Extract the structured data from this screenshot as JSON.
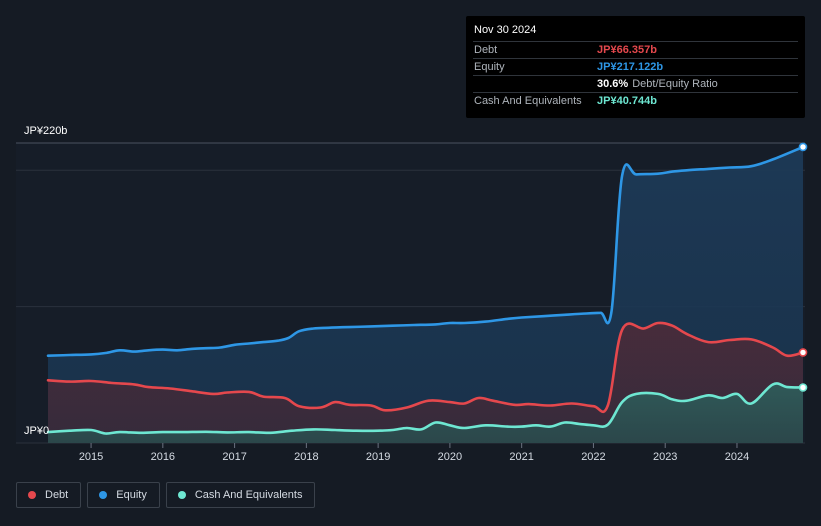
{
  "tooltip": {
    "date": "Nov 30 2024",
    "rows": [
      {
        "label": "Debt",
        "value": "JP¥66.357b",
        "color": "#e5484d"
      },
      {
        "label": "Equity",
        "value": "JP¥217.122b",
        "color": "#2e97e6"
      },
      {
        "label": "",
        "value": "30.6%",
        "extra": "Debt/Equity Ratio",
        "color": "#ffffff"
      },
      {
        "label": "Cash And Equivalents",
        "value": "JP¥40.744b",
        "color": "#6ee7d2"
      }
    ]
  },
  "legend": [
    {
      "label": "Debt",
      "color": "#e5484d"
    },
    {
      "label": "Equity",
      "color": "#2e97e6"
    },
    {
      "label": "Cash And Equivalents",
      "color": "#6ee7d2"
    }
  ],
  "chart_data": {
    "type": "area",
    "xlabel": "",
    "ylabel": "",
    "ylim": [
      0,
      220
    ],
    "xlim": [
      2014.4,
      2024.92
    ],
    "y_tick_labels": [
      {
        "value": 220,
        "label": "JP¥220b"
      },
      {
        "value": 0,
        "label": "JP¥0"
      }
    ],
    "x_ticks": [
      {
        "value": 2015,
        "label": "2015"
      },
      {
        "value": 2016,
        "label": "2016"
      },
      {
        "value": 2017,
        "label": "2017"
      },
      {
        "value": 2018,
        "label": "2018"
      },
      {
        "value": 2019,
        "label": "2019"
      },
      {
        "value": 2020,
        "label": "2020"
      },
      {
        "value": 2021,
        "label": "2021"
      },
      {
        "value": 2022,
        "label": "2022"
      },
      {
        "value": 2023,
        "label": "2023"
      },
      {
        "value": 2024,
        "label": "2024"
      }
    ],
    "series": [
      {
        "name": "Equity",
        "color": "#2e97e6",
        "points": [
          [
            2014.4,
            64
          ],
          [
            2014.7,
            64.5
          ],
          [
            2015.0,
            65
          ],
          [
            2015.2,
            66
          ],
          [
            2015.4,
            68
          ],
          [
            2015.6,
            67
          ],
          [
            2015.8,
            68
          ],
          [
            2016.0,
            68.5
          ],
          [
            2016.2,
            68
          ],
          [
            2016.4,
            69
          ],
          [
            2016.6,
            69.5
          ],
          [
            2016.8,
            70
          ],
          [
            2017.0,
            72
          ],
          [
            2017.2,
            73
          ],
          [
            2017.4,
            74
          ],
          [
            2017.6,
            75
          ],
          [
            2017.75,
            77
          ],
          [
            2017.9,
            82
          ],
          [
            2018.1,
            84
          ],
          [
            2018.3,
            84.5
          ],
          [
            2018.6,
            85
          ],
          [
            2018.9,
            85.5
          ],
          [
            2019.2,
            86
          ],
          [
            2019.5,
            86.5
          ],
          [
            2019.8,
            87
          ],
          [
            2020.0,
            88
          ],
          [
            2020.2,
            88
          ],
          [
            2020.5,
            89
          ],
          [
            2020.8,
            91
          ],
          [
            2021.0,
            92
          ],
          [
            2021.3,
            93
          ],
          [
            2021.6,
            94
          ],
          [
            2021.9,
            95
          ],
          [
            2022.1,
            95.5
          ],
          [
            2022.25,
            96
          ],
          [
            2022.4,
            196
          ],
          [
            2022.6,
            197
          ],
          [
            2022.9,
            197.5
          ],
          [
            2023.1,
            199
          ],
          [
            2023.3,
            200
          ],
          [
            2023.6,
            201
          ],
          [
            2023.9,
            202
          ],
          [
            2024.2,
            203
          ],
          [
            2024.5,
            208
          ],
          [
            2024.92,
            217.1
          ]
        ]
      },
      {
        "name": "Debt",
        "color": "#e5484d",
        "points": [
          [
            2014.4,
            46
          ],
          [
            2014.7,
            45
          ],
          [
            2015.0,
            45.5
          ],
          [
            2015.3,
            44
          ],
          [
            2015.6,
            43
          ],
          [
            2015.8,
            41
          ],
          [
            2016.1,
            40
          ],
          [
            2016.4,
            38
          ],
          [
            2016.7,
            36
          ],
          [
            2016.9,
            37
          ],
          [
            2017.2,
            37.5
          ],
          [
            2017.4,
            34
          ],
          [
            2017.7,
            33
          ],
          [
            2017.9,
            27
          ],
          [
            2018.2,
            26
          ],
          [
            2018.4,
            30
          ],
          [
            2018.6,
            28
          ],
          [
            2018.9,
            27.5
          ],
          [
            2019.1,
            24
          ],
          [
            2019.4,
            26
          ],
          [
            2019.7,
            31
          ],
          [
            2020.0,
            30
          ],
          [
            2020.2,
            29
          ],
          [
            2020.4,
            33
          ],
          [
            2020.6,
            31
          ],
          [
            2020.9,
            28
          ],
          [
            2021.1,
            28.5
          ],
          [
            2021.4,
            27.5
          ],
          [
            2021.7,
            29
          ],
          [
            2022.0,
            27
          ],
          [
            2022.2,
            27.5
          ],
          [
            2022.4,
            83
          ],
          [
            2022.7,
            84
          ],
          [
            2022.9,
            88
          ],
          [
            2023.1,
            86
          ],
          [
            2023.3,
            80
          ],
          [
            2023.6,
            74
          ],
          [
            2023.9,
            75.5
          ],
          [
            2024.2,
            76
          ],
          [
            2024.5,
            70
          ],
          [
            2024.7,
            64
          ],
          [
            2024.92,
            66.4
          ]
        ]
      },
      {
        "name": "Cash And Equivalents",
        "color": "#6ee7d2",
        "points": [
          [
            2014.4,
            8
          ],
          [
            2014.7,
            9
          ],
          [
            2015.0,
            9.5
          ],
          [
            2015.2,
            7
          ],
          [
            2015.4,
            8
          ],
          [
            2015.7,
            7.5
          ],
          [
            2016.0,
            8
          ],
          [
            2016.3,
            8
          ],
          [
            2016.6,
            8.2
          ],
          [
            2016.9,
            7.8
          ],
          [
            2017.2,
            8
          ],
          [
            2017.5,
            7.5
          ],
          [
            2017.8,
            9
          ],
          [
            2018.1,
            10
          ],
          [
            2018.4,
            9.5
          ],
          [
            2018.7,
            9
          ],
          [
            2019.0,
            9
          ],
          [
            2019.2,
            9.5
          ],
          [
            2019.4,
            11
          ],
          [
            2019.6,
            10
          ],
          [
            2019.8,
            15
          ],
          [
            2020.0,
            13
          ],
          [
            2020.2,
            11
          ],
          [
            2020.5,
            13
          ],
          [
            2020.8,
            12
          ],
          [
            2021.0,
            12
          ],
          [
            2021.2,
            13
          ],
          [
            2021.4,
            12
          ],
          [
            2021.6,
            15
          ],
          [
            2021.8,
            14
          ],
          [
            2022.0,
            13
          ],
          [
            2022.2,
            13.5
          ],
          [
            2022.4,
            30
          ],
          [
            2022.6,
            36
          ],
          [
            2022.9,
            36
          ],
          [
            2023.1,
            32
          ],
          [
            2023.3,
            31
          ],
          [
            2023.6,
            35
          ],
          [
            2023.8,
            33
          ],
          [
            2024.0,
            36
          ],
          [
            2024.2,
            29
          ],
          [
            2024.5,
            43
          ],
          [
            2024.7,
            41
          ],
          [
            2024.92,
            40.7
          ]
        ]
      }
    ]
  }
}
